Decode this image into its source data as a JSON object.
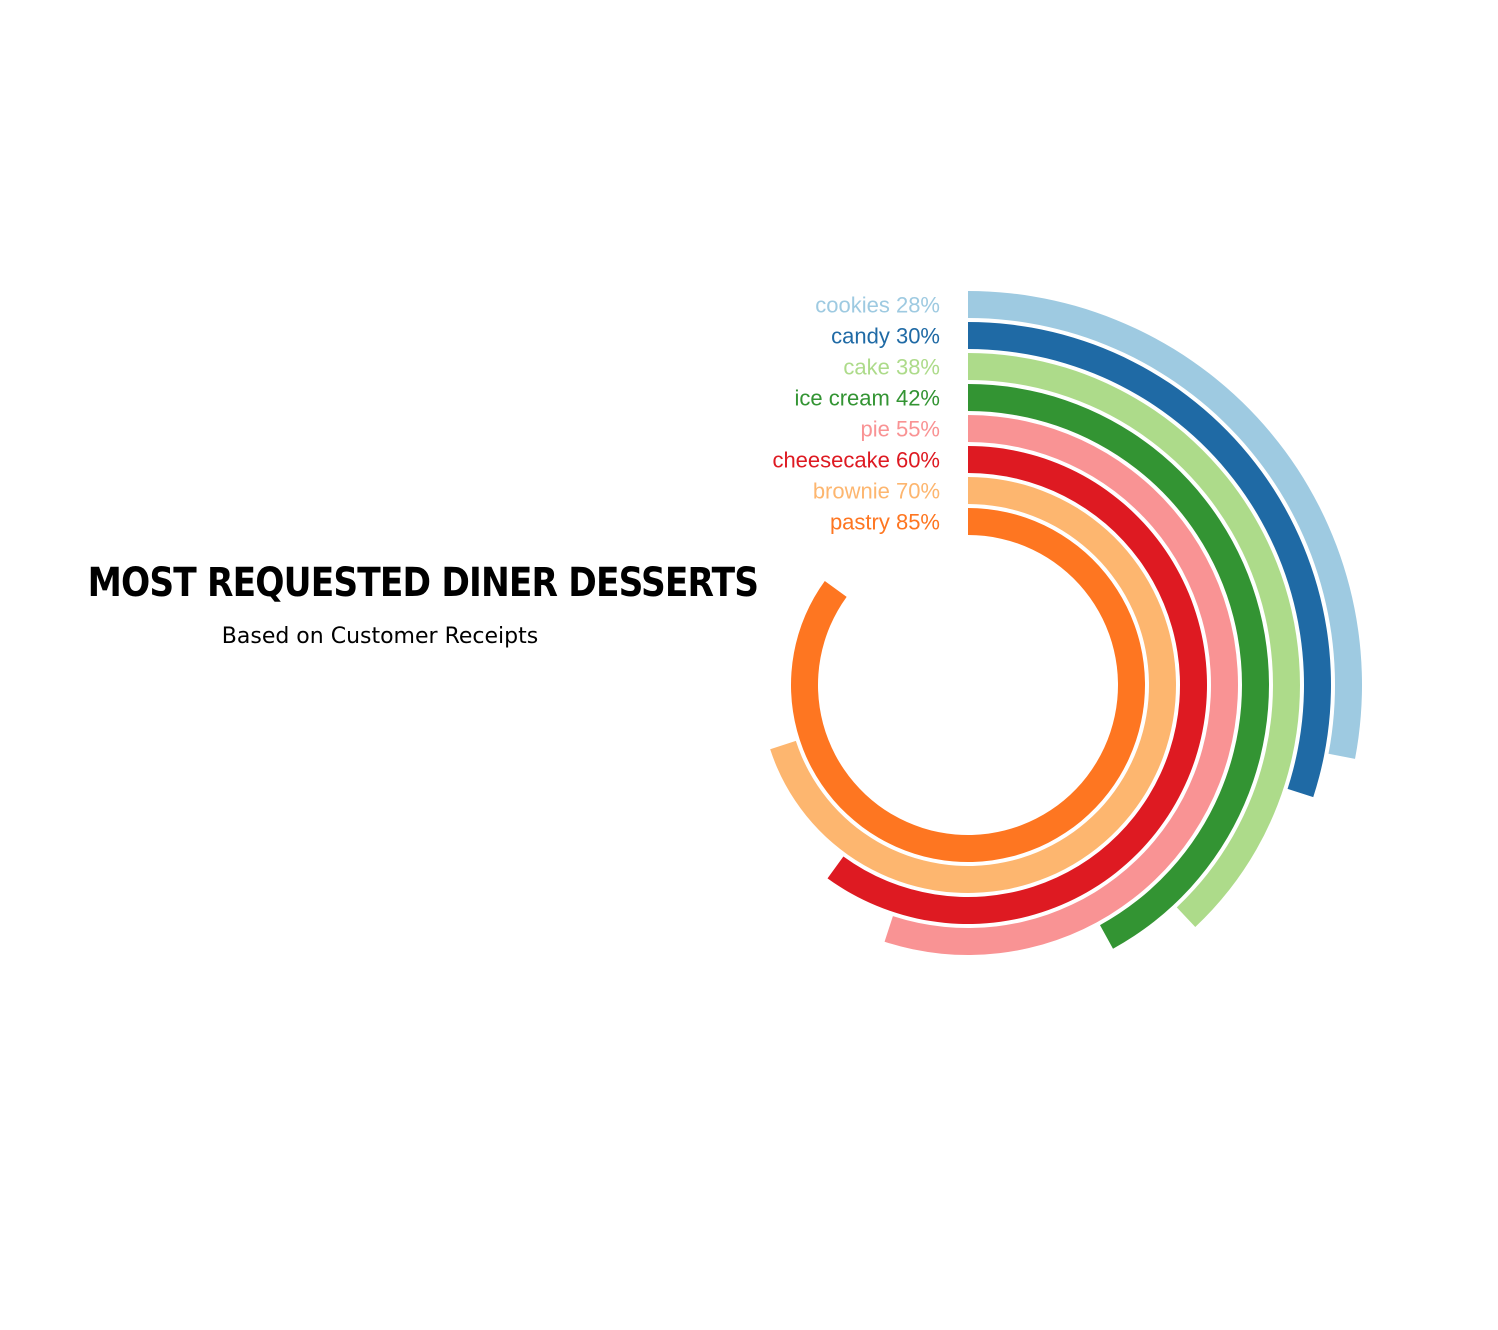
{
  "title": "MOST REQUESTED DINER DESSERTS",
  "subtitle": "Based on Customer Receipts",
  "chart_data": {
    "type": "radial-bar",
    "unit": "%",
    "max_value": 100,
    "start_angle": "top (12 o'clock)",
    "direction": "clockwise",
    "series": [
      {
        "label": "cookies",
        "value": 28,
        "display": "cookies 28%",
        "color": "#9ecae1"
      },
      {
        "label": "candy",
        "value": 30,
        "display": "candy 30%",
        "color": "#1f6aa5"
      },
      {
        "label": "cake",
        "value": 38,
        "display": "cake 38%",
        "color": "#addb8a"
      },
      {
        "label": "ice cream",
        "value": 42,
        "display": "ice cream 42%",
        "color": "#339433"
      },
      {
        "label": "pie",
        "value": 55,
        "display": "pie 55%",
        "color": "#f99394"
      },
      {
        "label": "cheesecake",
        "value": 60,
        "display": "cheesecake 60%",
        "color": "#de1a22"
      },
      {
        "label": "brownie",
        "value": 70,
        "display": "brownie 70%",
        "color": "#fdb66f"
      },
      {
        "label": "pastry",
        "value": 85,
        "display": "pastry 85%",
        "color": "#fe7621"
      }
    ]
  }
}
